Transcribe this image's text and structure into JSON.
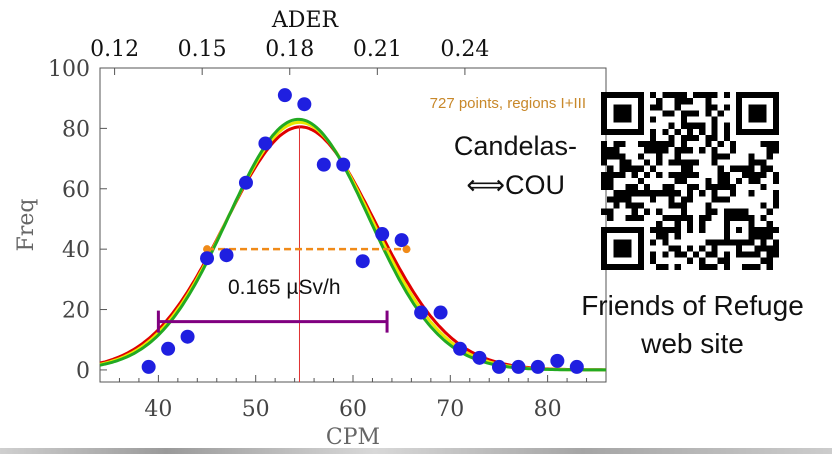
{
  "chart_data": {
    "type": "scatter",
    "xlabel": "CPM",
    "ylabel": "Freq",
    "top_axis_label": "ADER",
    "xlim": [
      34,
      86
    ],
    "ylim": [
      -4,
      100
    ],
    "x_ticks": [
      40,
      50,
      60,
      70,
      80
    ],
    "y_ticks": [
      0,
      20,
      40,
      60,
      80,
      100
    ],
    "top_ticks": [
      {
        "label": "0.12",
        "cpm": 35.5
      },
      {
        "label": "0.15",
        "cpm": 44.5
      },
      {
        "label": "0.18",
        "cpm": 53.5
      },
      {
        "label": "0.21",
        "cpm": 62.5
      },
      {
        "label": "0.24",
        "cpm": 71.5
      }
    ],
    "series": [
      {
        "marker_color": "#1f1fe0",
        "points": [
          [
            39,
            1
          ],
          [
            41,
            7
          ],
          [
            43,
            11
          ],
          [
            45,
            37
          ],
          [
            47,
            38
          ],
          [
            49,
            62
          ],
          [
            51,
            75
          ],
          [
            53,
            91
          ],
          [
            55,
            88
          ],
          [
            57,
            68
          ],
          [
            59,
            68
          ],
          [
            61,
            36
          ],
          [
            63,
            45
          ],
          [
            65,
            43
          ],
          [
            67,
            19
          ],
          [
            69,
            19
          ],
          [
            71,
            7
          ],
          [
            73,
            4
          ],
          [
            75,
            1
          ],
          [
            77,
            1
          ],
          [
            79,
            1
          ],
          [
            81,
            3
          ],
          [
            83,
            1
          ]
        ]
      }
    ],
    "fit_curves": [
      {
        "color": "#e00000",
        "amplitude": 80.5,
        "mean": 54.6,
        "sigma": 7.7
      },
      {
        "color": "#e8e800",
        "amplitude": 82.0,
        "mean": 54.5,
        "sigma": 7.45
      },
      {
        "color": "#22aa22",
        "amplitude": 83.0,
        "mean": 54.4,
        "sigma": 7.25
      }
    ],
    "mean_line": {
      "x": 54.5,
      "color": "#e03030"
    },
    "half_max_line": {
      "x1": 45,
      "x2": 65.5,
      "y": 40,
      "color": "#f08a18"
    },
    "range_bar": {
      "x1": 40,
      "x2": 63.5,
      "y": 16,
      "color": "#800080"
    },
    "annotations": {
      "points_note": "727 points, regions I+III",
      "points_note_color": "#c8882a",
      "dose_label": "0.165 µSv/h",
      "method_line1": "Candelas-",
      "method_line2": "⟺COU"
    }
  },
  "qr": {
    "caption_line1": "Friends of Refuge",
    "caption_line2": "web site"
  }
}
